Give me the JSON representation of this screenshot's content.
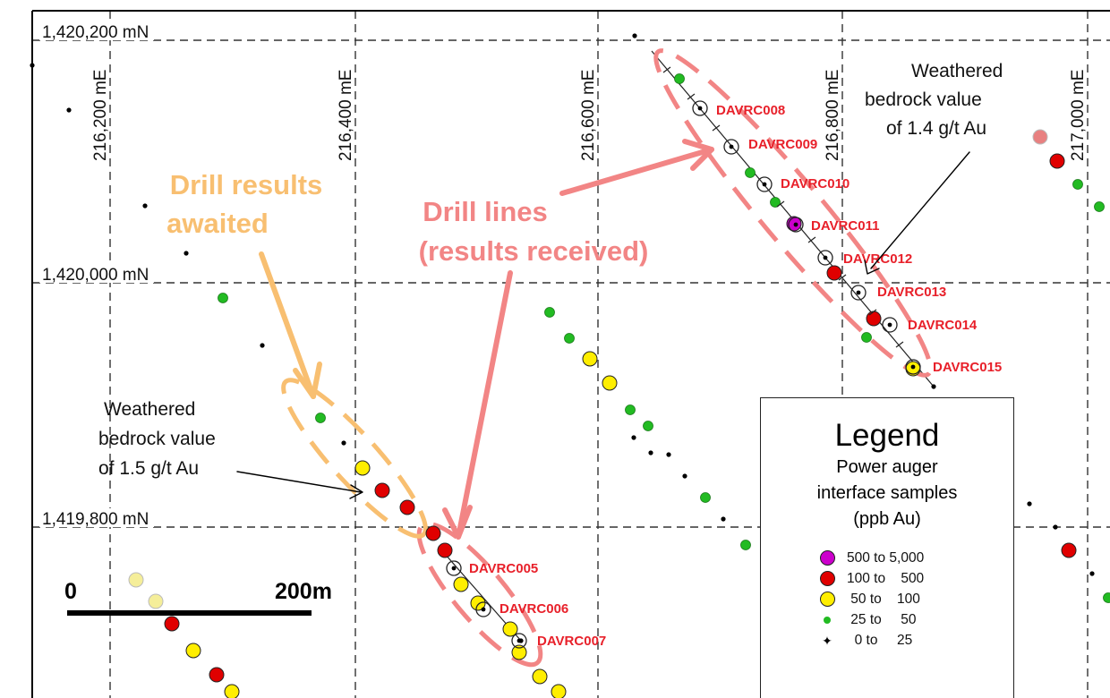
{
  "grid": {
    "northings": [
      "1,420,200 mN",
      "1,420,000 mN",
      "1,419,800 mN"
    ],
    "eastings": [
      "216,200 mE",
      "216,400 mE",
      "216,600 mE",
      "216,800 mE",
      "217,000 mE"
    ]
  },
  "callouts": {
    "awaited": {
      "line1": "Drill results",
      "line2": "awaited",
      "color": "#f8bf71"
    },
    "received": {
      "line1": "Drill lines",
      "line2": "(results received)",
      "color": "#f28585"
    }
  },
  "notes": {
    "upper": {
      "line1": "Weathered",
      "line2": "bedrock value",
      "line3": "of 1.4 g/t Au"
    },
    "lower": {
      "line1": "Weathered",
      "line2": "bedrock value",
      "line3": "of 1.5 g/t Au"
    }
  },
  "holes": [
    "DAVRC005",
    "DAVRC006",
    "DAVRC007",
    "DAVRC008",
    "DAVRC009",
    "DAVRC010",
    "DAVRC011",
    "DAVRC012",
    "DAVRC013",
    "DAVRC014",
    "DAVRC015"
  ],
  "scale_bar": {
    "start": "0",
    "end": "200m"
  },
  "legend": {
    "title": "Legend",
    "subtitle1": "Power auger",
    "subtitle2": "interface samples",
    "subtitle3": "(ppb Au)",
    "classes": [
      {
        "range": "500 to 5,000",
        "color": "#cc00cc",
        "symbol": "large-dot"
      },
      {
        "range": "100 to    500",
        "color": "#e00000",
        "symbol": "large-dot"
      },
      {
        "range": " 50 to    100",
        "color": "#ffee00",
        "symbol": "large-dot"
      },
      {
        "range": " 25 to     50",
        "color": "#22bb22",
        "symbol": "small-dot"
      },
      {
        "range": "  0 to     25",
        "color": "#000000",
        "symbol": "cross"
      }
    ]
  }
}
